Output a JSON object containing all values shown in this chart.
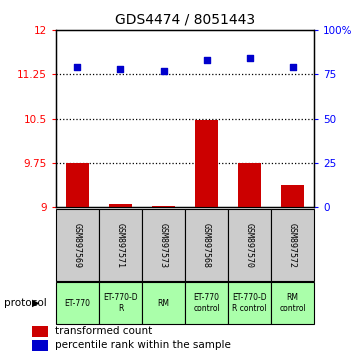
{
  "title": "GDS4474 / 8051443",
  "samples": [
    "GSM897569",
    "GSM897571",
    "GSM897573",
    "GSM897568",
    "GSM897570",
    "GSM897572"
  ],
  "protocols": [
    "ET-770",
    "ET-770-D\nR",
    "RM",
    "ET-770\ncontrol",
    "ET-770-D\nR control",
    "RM\ncontrol"
  ],
  "transformed_counts": [
    9.75,
    9.05,
    9.02,
    10.47,
    9.75,
    9.37
  ],
  "percentile_ranks": [
    79,
    78,
    77,
    83,
    84,
    79
  ],
  "bar_color": "#cc0000",
  "dot_color": "#0000cc",
  "left_ylim": [
    9.0,
    12.0
  ],
  "right_ylim": [
    0,
    100
  ],
  "left_yticks": [
    9.0,
    9.75,
    10.5,
    11.25,
    12.0
  ],
  "left_yticklabels": [
    "9",
    "9.75",
    "10.5",
    "11.25",
    "12"
  ],
  "right_yticks": [
    0,
    25,
    50,
    75,
    100
  ],
  "right_yticklabels": [
    "0",
    "25",
    "50",
    "75",
    "100%"
  ],
  "hlines": [
    9.75,
    10.5,
    11.25
  ],
  "protocol_bg_color": "#aaffaa",
  "sample_bg_color": "#cccccc",
  "bar_bottom": 9.0,
  "legend_items": [
    "transformed count",
    "percentile rank within the sample"
  ],
  "legend_colors": [
    "#cc0000",
    "#0000cc"
  ],
  "fig_width": 3.61,
  "fig_height": 3.54,
  "dpi": 100
}
